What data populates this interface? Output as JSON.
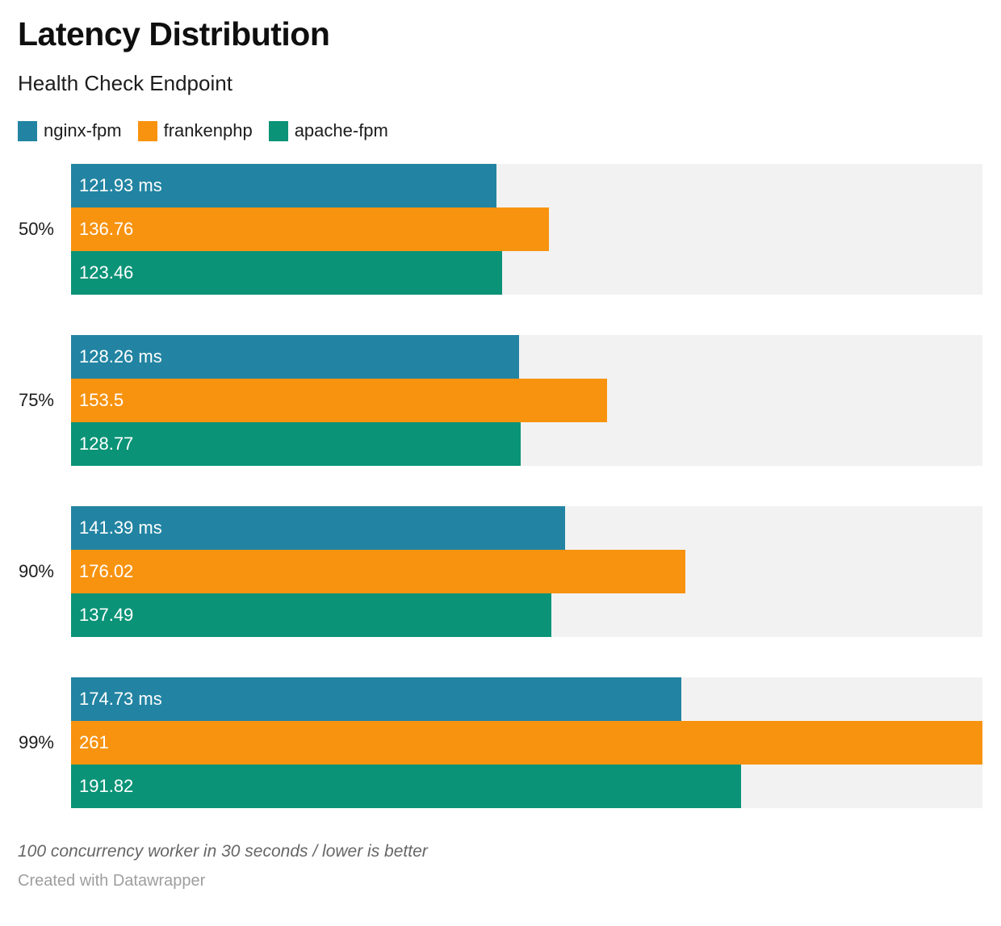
{
  "header": {
    "title": "Latency Distribution",
    "subtitle": "Health Check Endpoint"
  },
  "chart_data": {
    "type": "bar",
    "orientation": "horizontal",
    "title": "Latency Distribution",
    "subtitle": "Health Check Endpoint",
    "categories": [
      "50%",
      "75%",
      "90%",
      "99%"
    ],
    "series": [
      {
        "name": "nginx-fpm",
        "color": "#2284a2",
        "values": [
          121.93,
          128.26,
          141.39,
          174.73
        ],
        "bar_labels": [
          "121.93 ms",
          "128.26 ms",
          "141.39 ms",
          "174.73 ms"
        ]
      },
      {
        "name": "frankenphp",
        "color": "#f89310",
        "values": [
          136.76,
          153.5,
          176.02,
          261
        ],
        "bar_labels": [
          "136.76",
          "153.5",
          "176.02",
          "261"
        ]
      },
      {
        "name": "apache-fpm",
        "color": "#0a9377",
        "values": [
          123.46,
          128.77,
          137.49,
          191.82
        ],
        "bar_labels": [
          "123.46",
          "128.77",
          "137.49",
          "191.82"
        ]
      }
    ],
    "xlim": [
      0,
      261
    ],
    "legend_position": "top",
    "grid": false,
    "track_color": "#f2f2f2",
    "value_label_color": "#ffffff"
  },
  "footer": {
    "note": "100 concurrency worker in 30 seconds / lower is better",
    "attribution": "Created with Datawrapper"
  }
}
